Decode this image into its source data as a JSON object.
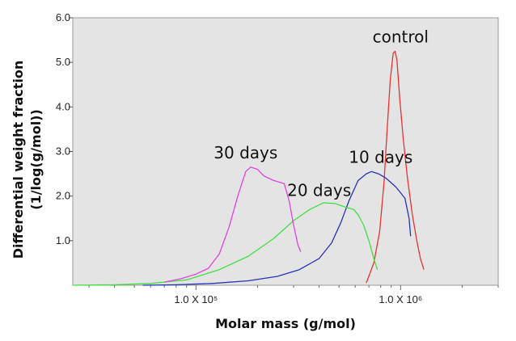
{
  "chart_data": {
    "type": "line",
    "title": "",
    "xlabel": "Molar mass (g/mol)",
    "ylabel_line1": "Differential weight fraction",
    "ylabel_line2": "(1/log(g/mol))",
    "x_scale": "log",
    "xlim": [
      25000,
      3000000
    ],
    "ylim": [
      0,
      6.0
    ],
    "x_ticks": [
      {
        "value": 100000,
        "label": "1.0 X 10⁵"
      },
      {
        "value": 1000000,
        "label": "1.0 X 10⁶"
      }
    ],
    "y_ticks": [
      {
        "value": 1.0,
        "label": "1.0"
      },
      {
        "value": 2.0,
        "label": "2.0"
      },
      {
        "value": 3.0,
        "label": "3.0"
      },
      {
        "value": 4.0,
        "label": "4.0"
      },
      {
        "value": 5.0,
        "label": "5.0"
      },
      {
        "value": 6.0,
        "label": "6.0"
      }
    ],
    "grid": false,
    "background": "#e4e4e4",
    "series": [
      {
        "name": "control",
        "color": "#e8322e",
        "label_at": {
          "x": 1000000,
          "y": 5.45
        },
        "points": [
          [
            680000,
            0.05
          ],
          [
            740000,
            0.5
          ],
          [
            790000,
            1.2
          ],
          [
            830000,
            2.3
          ],
          [
            860000,
            3.5
          ],
          [
            890000,
            4.6
          ],
          [
            920000,
            5.2
          ],
          [
            940000,
            5.25
          ],
          [
            960000,
            5.05
          ],
          [
            990000,
            4.2
          ],
          [
            1030000,
            3.3
          ],
          [
            1080000,
            2.4
          ],
          [
            1140000,
            1.6
          ],
          [
            1200000,
            1.0
          ],
          [
            1250000,
            0.6
          ],
          [
            1300000,
            0.35
          ]
        ]
      },
      {
        "name": "10 days",
        "color": "#2433b8",
        "label_at": {
          "x": 800000,
          "y": 2.75
        },
        "points": [
          [
            55000,
            0.0
          ],
          [
            80000,
            0.01
          ],
          [
            120000,
            0.04
          ],
          [
            180000,
            0.1
          ],
          [
            250000,
            0.2
          ],
          [
            320000,
            0.35
          ],
          [
            400000,
            0.6
          ],
          [
            460000,
            0.95
          ],
          [
            510000,
            1.4
          ],
          [
            560000,
            1.9
          ],
          [
            620000,
            2.35
          ],
          [
            680000,
            2.5
          ],
          [
            720000,
            2.55
          ],
          [
            780000,
            2.5
          ],
          [
            850000,
            2.4
          ],
          [
            950000,
            2.2
          ],
          [
            1050000,
            1.95
          ],
          [
            1100000,
            1.5
          ],
          [
            1120000,
            1.1
          ]
        ]
      },
      {
        "name": "20 days",
        "color": "#3fe03f",
        "label_at": {
          "x": 400000,
          "y": 2.0
        },
        "points": [
          [
            25000,
            0.0
          ],
          [
            40000,
            0.01
          ],
          [
            60000,
            0.04
          ],
          [
            90000,
            0.12
          ],
          [
            130000,
            0.35
          ],
          [
            180000,
            0.65
          ],
          [
            240000,
            1.05
          ],
          [
            300000,
            1.45
          ],
          [
            360000,
            1.7
          ],
          [
            420000,
            1.85
          ],
          [
            480000,
            1.83
          ],
          [
            540000,
            1.75
          ],
          [
            590000,
            1.7
          ],
          [
            620000,
            1.58
          ],
          [
            660000,
            1.35
          ],
          [
            700000,
            1.0
          ],
          [
            740000,
            0.6
          ],
          [
            770000,
            0.35
          ]
        ]
      },
      {
        "name": "30 days",
        "color": "#e441e0",
        "label_at": {
          "x": 175000,
          "y": 2.85
        },
        "points": [
          [
            70000,
            0.07
          ],
          [
            85000,
            0.15
          ],
          [
            100000,
            0.25
          ],
          [
            115000,
            0.38
          ],
          [
            130000,
            0.7
          ],
          [
            145000,
            1.3
          ],
          [
            160000,
            2.0
          ],
          [
            175000,
            2.55
          ],
          [
            185000,
            2.65
          ],
          [
            200000,
            2.6
          ],
          [
            215000,
            2.45
          ],
          [
            240000,
            2.35
          ],
          [
            270000,
            2.28
          ],
          [
            285000,
            1.9
          ],
          [
            300000,
            1.35
          ],
          [
            315000,
            0.9
          ],
          [
            325000,
            0.75
          ]
        ]
      }
    ]
  }
}
